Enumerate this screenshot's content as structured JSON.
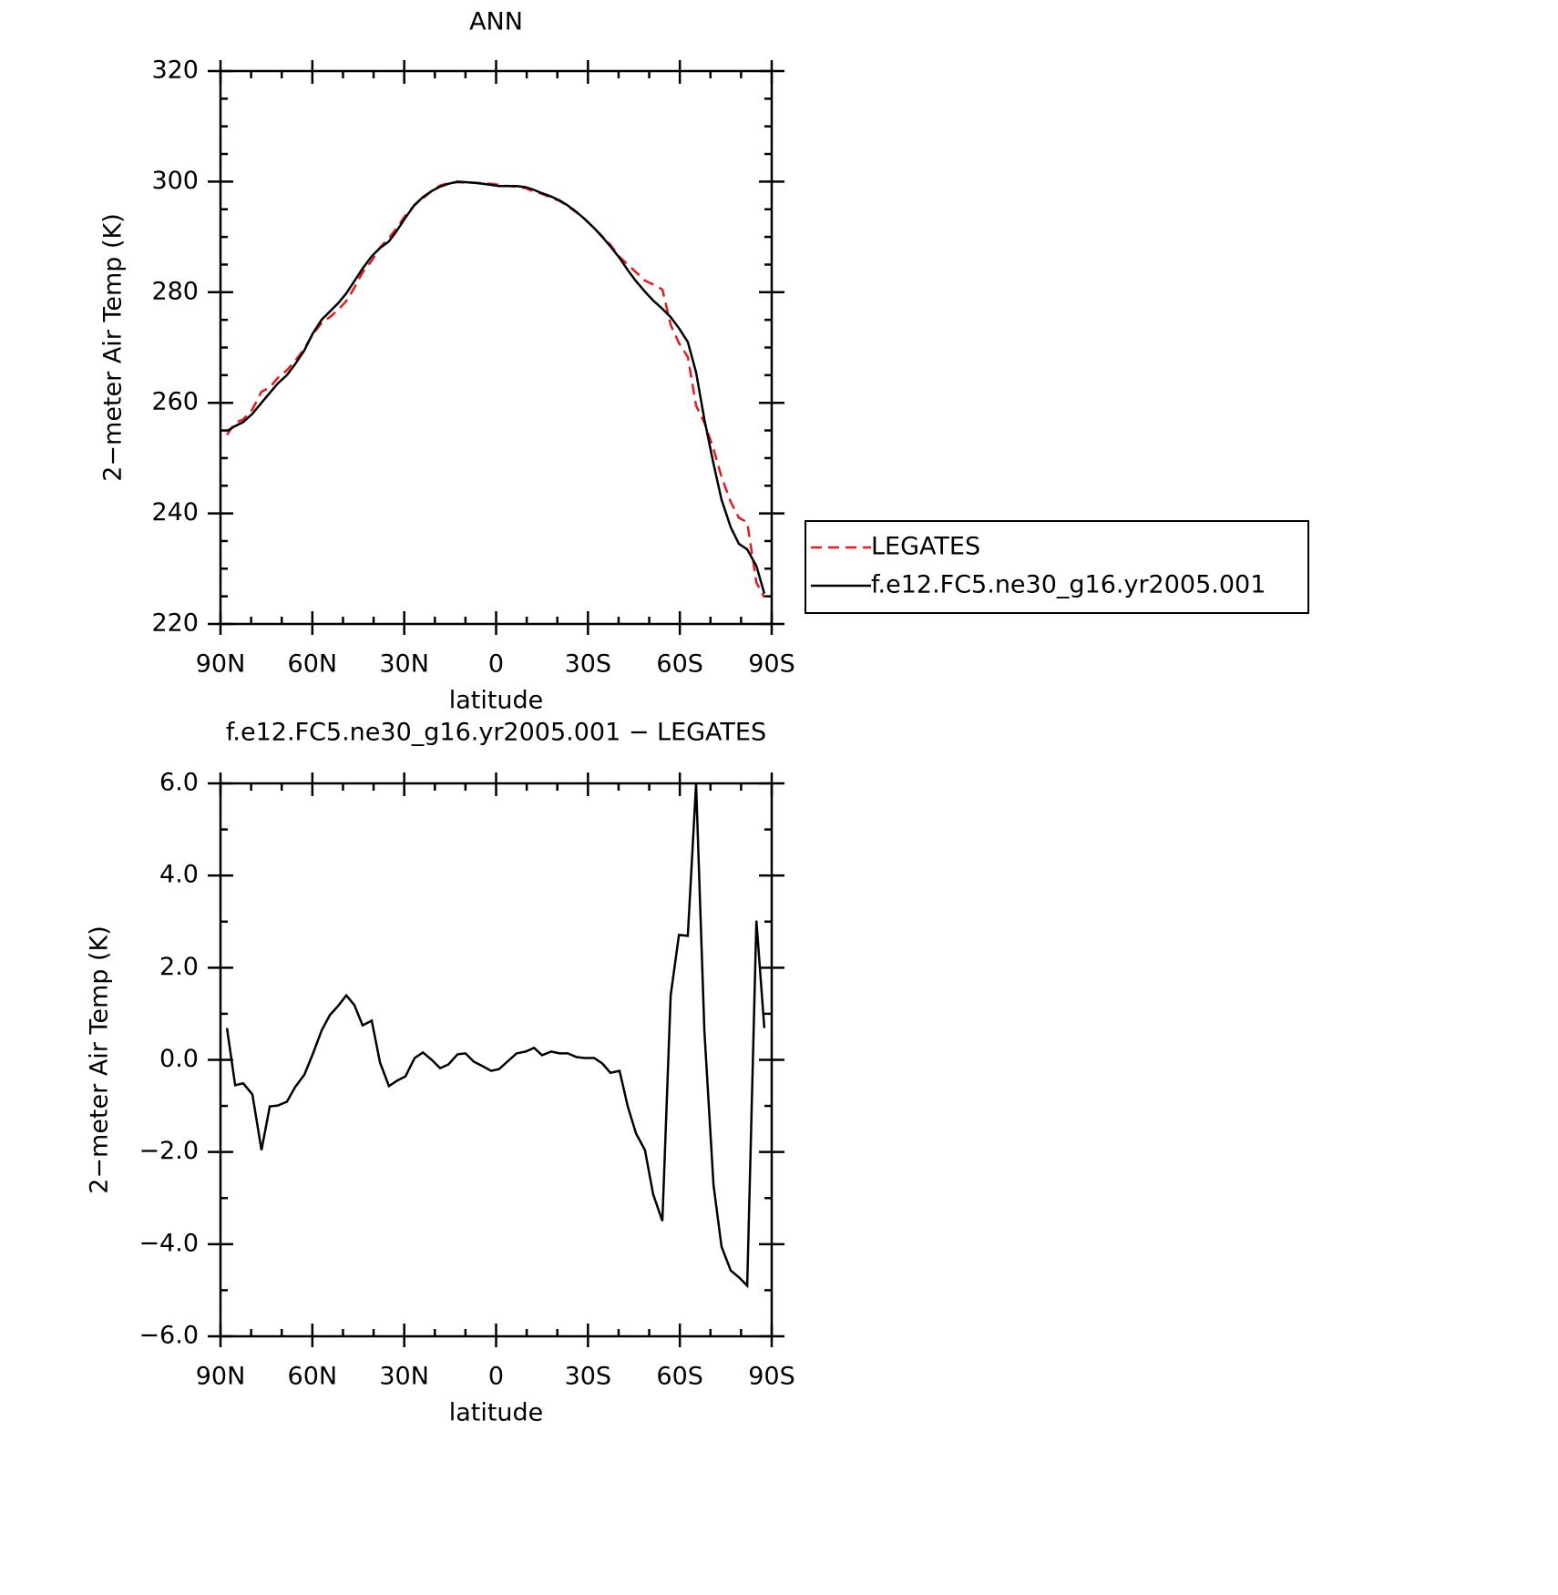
{
  "chart_data": [
    {
      "type": "line",
      "title": "ANN",
      "xlabel": "latitude",
      "ylabel": "2−meter Air Temp (K)",
      "x": [
        87.9,
        85.2,
        82.6,
        79.6,
        76.6,
        73.9,
        71.3,
        68.3,
        65.6,
        62.6,
        59.9,
        57.0,
        54.3,
        51.6,
        48.9,
        46.3,
        43.6,
        40.6,
        37.9,
        35.0,
        32.3,
        29.6,
        26.6,
        23.9,
        21.0,
        18.3,
        15.6,
        12.6,
        10.0,
        7.3,
        4.3,
        1.6,
        -1.0,
        -4.0,
        -6.7,
        -9.7,
        -12.4,
        -15.0,
        -18.0,
        -20.7,
        -23.4,
        -26.3,
        -29.0,
        -32.0,
        -34.7,
        -37.3,
        -40.3,
        -43.0,
        -45.7,
        -48.6,
        -51.3,
        -54.3,
        -57.0,
        -59.7,
        -62.6,
        -65.3,
        -68.0,
        -71.0,
        -73.6,
        -76.6,
        -79.3,
        -82.0,
        -85.0,
        -87.6
      ],
      "series": [
        {
          "name": "LEGATES",
          "color": "#e41a1c",
          "dash": true,
          "values": [
            254.2,
            256.4,
            257.0,
            258.8,
            262.0,
            262.8,
            264.5,
            265.9,
            267.6,
            269.8,
            272.4,
            274.4,
            275.5,
            276.8,
            278.4,
            280.8,
            283.6,
            285.7,
            288.1,
            289.8,
            291.7,
            293.9,
            295.8,
            297.0,
            298.3,
            299.3,
            299.7,
            299.9,
            299.8,
            299.8,
            299.7,
            299.6,
            299.4,
            299.2,
            299.1,
            298.8,
            298.2,
            297.8,
            297.1,
            296.5,
            295.6,
            294.4,
            293.2,
            291.6,
            290.1,
            288.6,
            286.4,
            285.0,
            283.6,
            282.1,
            281.4,
            280.5,
            274.1,
            270.8,
            268.3,
            259.5,
            256.4,
            251.7,
            246.6,
            242.1,
            239.2,
            238.4,
            227.5,
            224.8
          ]
        },
        {
          "name": "f.e12.FC5.ne30_g16.yr2005.001",
          "color": "#000000",
          "dash": false,
          "values": [
            254.9,
            255.8,
            256.5,
            258.0,
            260.0,
            261.8,
            263.5,
            265.0,
            267.0,
            269.5,
            272.5,
            275.0,
            276.5,
            278.0,
            279.8,
            282.0,
            284.3,
            286.5,
            288.0,
            289.2,
            291.2,
            293.5,
            295.8,
            297.2,
            298.3,
            299.1,
            299.6,
            300.0,
            299.9,
            299.8,
            299.6,
            299.4,
            299.2,
            299.2,
            299.2,
            299.0,
            298.5,
            297.9,
            297.3,
            296.6,
            295.7,
            294.5,
            293.2,
            291.6,
            290.0,
            288.3,
            286.2,
            284.0,
            282.0,
            280.1,
            278.5,
            277.0,
            275.5,
            273.5,
            271.0,
            265.5,
            257.0,
            249.0,
            242.5,
            237.5,
            234.5,
            233.5,
            230.5,
            225.5
          ]
        }
      ],
      "xlim": [
        90,
        -90
      ],
      "xticks": [
        {
          "value": 90,
          "label": "90N"
        },
        {
          "value": 60,
          "label": "60N"
        },
        {
          "value": 30,
          "label": "30N"
        },
        0,
        {
          "value": -30,
          "label": "30S"
        },
        {
          "value": -60,
          "label": "60S"
        },
        {
          "value": -90,
          "label": "90S"
        }
      ],
      "xminorticks": [
        80,
        70,
        50,
        40,
        20,
        10,
        -10,
        -20,
        -40,
        -50,
        -70,
        -80
      ],
      "ylim": [
        220,
        320
      ],
      "yticks": [
        220,
        240,
        260,
        280,
        300,
        320
      ],
      "yminorticks": [
        225,
        230,
        235,
        245,
        250,
        255,
        265,
        270,
        275,
        285,
        290,
        295,
        305,
        310,
        315
      ],
      "legend": "right"
    },
    {
      "type": "line",
      "title": "f.e12.FC5.ne30_g16.yr2005.001 − LEGATES",
      "xlabel": "latitude",
      "ylabel": "2−meter Air Temp (K)",
      "x": [
        87.9,
        85.2,
        82.6,
        79.6,
        76.6,
        73.9,
        71.3,
        68.3,
        65.6,
        62.6,
        59.9,
        57.0,
        54.3,
        51.6,
        48.9,
        46.3,
        43.6,
        40.6,
        37.9,
        35.0,
        32.3,
        29.6,
        26.6,
        23.9,
        21.0,
        18.3,
        15.6,
        12.6,
        10.0,
        7.3,
        4.3,
        1.6,
        -1.0,
        -4.0,
        -6.7,
        -9.7,
        -12.4,
        -15.0,
        -18.0,
        -20.7,
        -23.4,
        -26.3,
        -29.0,
        -32.0,
        -34.7,
        -37.3,
        -40.3,
        -43.0,
        -45.7,
        -48.6,
        -51.3,
        -54.3,
        -57.0,
        -59.7,
        -62.6,
        -65.3,
        -68.0,
        -71.0,
        -73.6,
        -76.6,
        -79.3,
        -82.0,
        -85.0,
        -87.6
      ],
      "series": [
        {
          "color": "#000000",
          "dash": false,
          "values": [
            0.69,
            -0.55,
            -0.51,
            -0.75,
            -1.96,
            -1.01,
            -0.99,
            -0.91,
            -0.59,
            -0.32,
            0.12,
            0.63,
            0.97,
            1.17,
            1.4,
            1.19,
            0.75,
            0.85,
            -0.06,
            -0.57,
            -0.45,
            -0.36,
            0.04,
            0.16,
            0.0,
            -0.18,
            -0.1,
            0.12,
            0.14,
            -0.04,
            -0.14,
            -0.24,
            -0.2,
            -0.02,
            0.14,
            0.18,
            0.26,
            0.1,
            0.18,
            0.14,
            0.14,
            0.06,
            0.04,
            0.04,
            -0.08,
            -0.28,
            -0.24,
            -1.01,
            -1.6,
            -1.96,
            -2.92,
            -3.5,
            1.4,
            2.71,
            2.69,
            5.99,
            0.63,
            -2.71,
            -4.05,
            -4.57,
            -4.72,
            -4.9,
            3.02,
            0.69
          ]
        }
      ],
      "xlim": [
        90,
        -90
      ],
      "xticks": [
        {
          "value": 90,
          "label": "90N"
        },
        {
          "value": 60,
          "label": "60N"
        },
        {
          "value": 30,
          "label": "30N"
        },
        0,
        {
          "value": -30,
          "label": "30S"
        },
        {
          "value": -60,
          "label": "60S"
        },
        {
          "value": -90,
          "label": "90S"
        }
      ],
      "xminorticks": [
        80,
        70,
        50,
        40,
        20,
        10,
        -10,
        -20,
        -40,
        -50,
        -70,
        -80
      ],
      "ylim": [
        -6,
        6
      ],
      "yticks": [
        {
          "value": -6,
          "label": "−6.0"
        },
        {
          "value": -4,
          "label": "−4.0"
        },
        {
          "value": -2,
          "label": "−2.0"
        },
        {
          "value": 0,
          "label": "0.0"
        },
        {
          "value": 2,
          "label": "2.0"
        },
        {
          "value": 4,
          "label": "4.0"
        },
        {
          "value": 6,
          "label": "6.0"
        }
      ],
      "yminorticks": [
        -5,
        -3,
        -1,
        1,
        3,
        5
      ]
    }
  ]
}
